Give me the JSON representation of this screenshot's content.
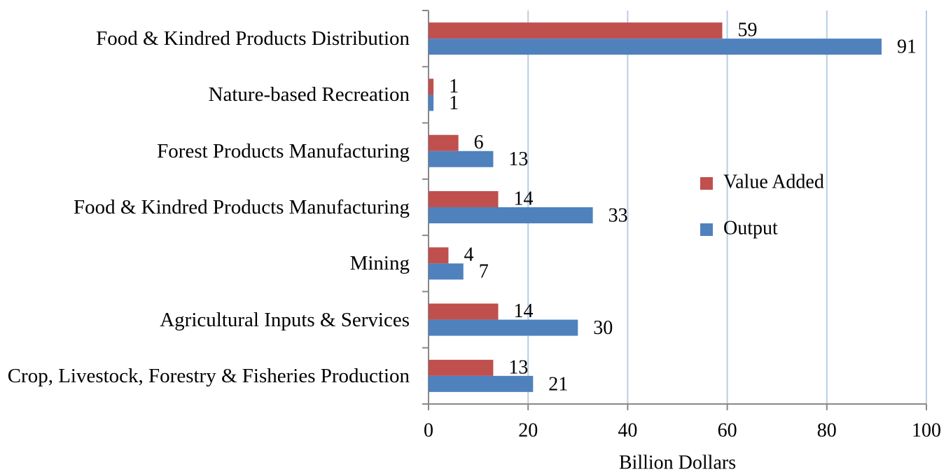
{
  "chart_data": {
    "type": "bar",
    "orientation": "horizontal",
    "categories": [
      "Food & Kindred Products Distribution",
      "Nature-based Recreation",
      "Forest Products Manufacturing",
      "Food & Kindred Products Manufacturing",
      "Mining",
      "Agricultural Inputs & Services",
      "Crop, Livestock, Forestry & Fisheries Production"
    ],
    "series": [
      {
        "name": "Value Added",
        "color": "#c0504d",
        "values": [
          59,
          1,
          6,
          14,
          4,
          14,
          13
        ]
      },
      {
        "name": "Output",
        "color": "#4f81bd",
        "values": [
          91,
          1,
          13,
          33,
          7,
          30,
          21
        ]
      }
    ],
    "xlim": [
      0,
      100
    ],
    "xticks": [
      0,
      20,
      40,
      60,
      80,
      100
    ],
    "grid": true,
    "x_label": "Billion Dollars",
    "legend": "right"
  }
}
